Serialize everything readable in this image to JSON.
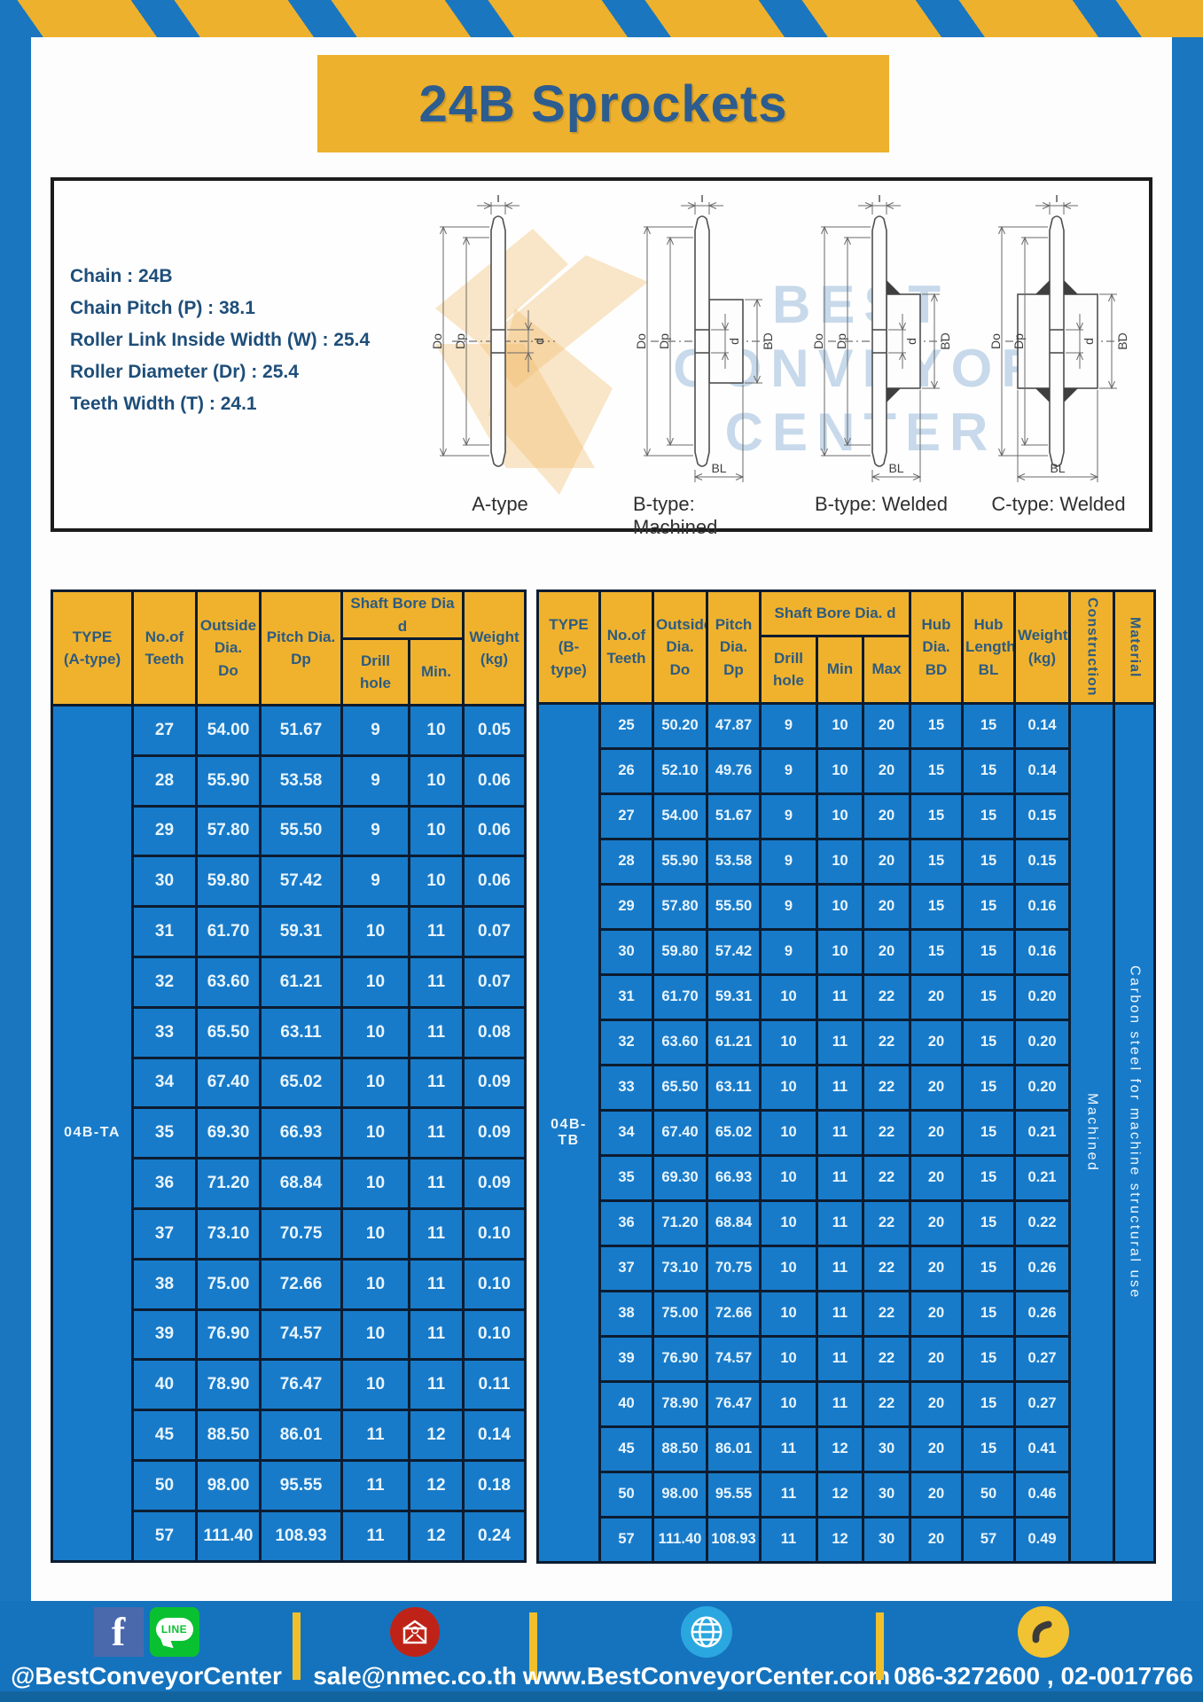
{
  "page": {
    "title": "24B Sprockets"
  },
  "colors": {
    "frame_blue": "#1b76c0",
    "accent_yellow": "#edb12d",
    "table_cell_blue": "#187bc9",
    "grid_dark": "#0c1c30",
    "header_text_blue": "#2d5b80",
    "footer_blue": "#1573bd",
    "title_blue": "#2d5c8f"
  },
  "specs": {
    "lines": [
      "Chain  : 24B",
      "Chain Pitch (P)  :  38.1",
      "Roller Link Inside Width (W)  :  25.4",
      "Roller Diameter (Dr)  : 25.4",
      "Teeth Width (T)  :  24.1"
    ]
  },
  "diagrams": {
    "watermark_lines": [
      "BEST",
      "CONVEYOR",
      "CENTER"
    ],
    "dim_labels": {
      "T": "T",
      "Do": "Do",
      "Dp": "Dp",
      "d": "d",
      "BD": "BD",
      "BL": "BL"
    },
    "figures": [
      {
        "label": "A-type"
      },
      {
        "label": "B-type: Machined"
      },
      {
        "label": "B-type: Welded"
      },
      {
        "label": "C-type: Welded"
      }
    ]
  },
  "table_a": {
    "type_label": "04B-TA",
    "headers": {
      "type": "TYPE\n(A-type)",
      "teeth": "No.of\nTeeth",
      "outside": "Outside\nDia.\nDo",
      "pitch": "Pitch Dia.\nDp",
      "shaft_bore": "Shaft Bore Dia d",
      "drill": "Drill hole",
      "min": "Min.",
      "weight": "Weight\n(kg)"
    },
    "rows": [
      [
        "27",
        "54.00",
        "51.67",
        "9",
        "10",
        "0.05"
      ],
      [
        "28",
        "55.90",
        "53.58",
        "9",
        "10",
        "0.06"
      ],
      [
        "29",
        "57.80",
        "55.50",
        "9",
        "10",
        "0.06"
      ],
      [
        "30",
        "59.80",
        "57.42",
        "9",
        "10",
        "0.06"
      ],
      [
        "31",
        "61.70",
        "59.31",
        "10",
        "11",
        "0.07"
      ],
      [
        "32",
        "63.60",
        "61.21",
        "10",
        "11",
        "0.07"
      ],
      [
        "33",
        "65.50",
        "63.11",
        "10",
        "11",
        "0.08"
      ],
      [
        "34",
        "67.40",
        "65.02",
        "10",
        "11",
        "0.09"
      ],
      [
        "35",
        "69.30",
        "66.93",
        "10",
        "11",
        "0.09"
      ],
      [
        "36",
        "71.20",
        "68.84",
        "10",
        "11",
        "0.09"
      ],
      [
        "37",
        "73.10",
        "70.75",
        "10",
        "11",
        "0.10"
      ],
      [
        "38",
        "75.00",
        "72.66",
        "10",
        "11",
        "0.10"
      ],
      [
        "39",
        "76.90",
        "74.57",
        "10",
        "11",
        "0.10"
      ],
      [
        "40",
        "78.90",
        "76.47",
        "10",
        "11",
        "0.11"
      ],
      [
        "45",
        "88.50",
        "86.01",
        "11",
        "12",
        "0.14"
      ],
      [
        "50",
        "98.00",
        "95.55",
        "11",
        "12",
        "0.18"
      ],
      [
        "57",
        "111.40",
        "108.93",
        "11",
        "12",
        "0.24"
      ]
    ]
  },
  "table_b": {
    "type_label": "04B-TB",
    "construction_value": "Machined",
    "material_value": "Carbon steel for machine structural use",
    "headers": {
      "type": "TYPE\n(B-type)",
      "teeth": "No.of\nTeeth",
      "outside": "Outside\nDia.\nDo",
      "pitch": "Pitch\nDia.\nDp",
      "shaft_bore": "Shaft Bore Dia. d",
      "drill": "Drill hole",
      "min": "Min",
      "max": "Max",
      "hub_dia": "Hub\nDia.\nBD",
      "hub_len": "Hub\nLength\nBL",
      "weight": "Weight\n(kg)",
      "construction": "Construction",
      "material": "Material"
    },
    "rows": [
      [
        "25",
        "50.20",
        "47.87",
        "9",
        "10",
        "20",
        "15",
        "15",
        "0.14"
      ],
      [
        "26",
        "52.10",
        "49.76",
        "9",
        "10",
        "20",
        "15",
        "15",
        "0.14"
      ],
      [
        "27",
        "54.00",
        "51.67",
        "9",
        "10",
        "20",
        "15",
        "15",
        "0.15"
      ],
      [
        "28",
        "55.90",
        "53.58",
        "9",
        "10",
        "20",
        "15",
        "15",
        "0.15"
      ],
      [
        "29",
        "57.80",
        "55.50",
        "9",
        "10",
        "20",
        "15",
        "15",
        "0.16"
      ],
      [
        "30",
        "59.80",
        "57.42",
        "9",
        "10",
        "20",
        "15",
        "15",
        "0.16"
      ],
      [
        "31",
        "61.70",
        "59.31",
        "10",
        "11",
        "22",
        "20",
        "15",
        "0.20"
      ],
      [
        "32",
        "63.60",
        "61.21",
        "10",
        "11",
        "22",
        "20",
        "15",
        "0.20"
      ],
      [
        "33",
        "65.50",
        "63.11",
        "10",
        "11",
        "22",
        "20",
        "15",
        "0.20"
      ],
      [
        "34",
        "67.40",
        "65.02",
        "10",
        "11",
        "22",
        "20",
        "15",
        "0.21"
      ],
      [
        "35",
        "69.30",
        "66.93",
        "10",
        "11",
        "22",
        "20",
        "15",
        "0.21"
      ],
      [
        "36",
        "71.20",
        "68.84",
        "10",
        "11",
        "22",
        "20",
        "15",
        "0.22"
      ],
      [
        "37",
        "73.10",
        "70.75",
        "10",
        "11",
        "22",
        "20",
        "15",
        "0.26"
      ],
      [
        "38",
        "75.00",
        "72.66",
        "10",
        "11",
        "22",
        "20",
        "15",
        "0.26"
      ],
      [
        "39",
        "76.90",
        "74.57",
        "10",
        "11",
        "22",
        "20",
        "15",
        "0.27"
      ],
      [
        "40",
        "78.90",
        "76.47",
        "10",
        "11",
        "22",
        "20",
        "15",
        "0.27"
      ],
      [
        "45",
        "88.50",
        "86.01",
        "11",
        "12",
        "30",
        "20",
        "15",
        "0.41"
      ],
      [
        "50",
        "98.00",
        "95.55",
        "11",
        "12",
        "30",
        "20",
        "50",
        "0.46"
      ],
      [
        "57",
        "111.40",
        "108.93",
        "11",
        "12",
        "30",
        "20",
        "57",
        "0.49"
      ]
    ]
  },
  "footer": {
    "facebook_letter": "f",
    "line_text": "LINE",
    "social_handle": "@BestConveyorCenter",
    "email": "sale@nmec.co.th",
    "website": "www.BestConveyorCenter.com",
    "phone": "086-3272600 , 02-0017766"
  }
}
